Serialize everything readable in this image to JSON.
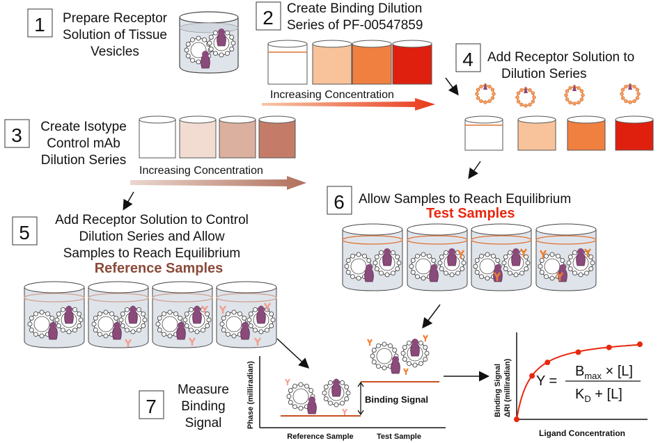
{
  "steps": {
    "s1": {
      "num": "1",
      "lines": [
        "Prepare Receptor",
        "Solution of Tissue",
        "Vesicles"
      ]
    },
    "s2": {
      "num": "2",
      "lines": [
        "Create Binding Dilution",
        "Series of PF-00547859"
      ]
    },
    "s3": {
      "num": "3",
      "lines": [
        "Create Isotype",
        "Control mAb",
        "Dilution Series"
      ]
    },
    "s4": {
      "num": "4",
      "lines": [
        "Add Receptor Solution to",
        "Dilution Series"
      ]
    },
    "s5": {
      "num": "5",
      "lines": [
        "Add Receptor Solution to Control",
        "Dilution Series and Allow",
        "Samples to Reach Equilibrium"
      ]
    },
    "s6": {
      "num": "6",
      "lines": [
        "Allow Samples to Reach Equilibrium"
      ]
    },
    "s7": {
      "num": "7",
      "lines": [
        "Measure",
        "Binding",
        "Signal"
      ]
    }
  },
  "arrows": {
    "test_concentration": "Increasing Concentration",
    "control_concentration": "Increasing Concentration"
  },
  "samples": {
    "test": "Test Samples",
    "reference": "Reference Samples"
  },
  "phase_plot": {
    "ylabel": "Phase (milliradian)",
    "binding_signal": "Binding Signal",
    "x_labels": [
      "Reference Sample",
      "Test Sample"
    ]
  },
  "binding_plot": {
    "ylabel_line1": "Binding Signal",
    "ylabel_line2": "ΔRI (milliradian)",
    "xlabel": "Ligand Concentration"
  },
  "equation": {
    "lhs": "Y =",
    "numerator_b": "B",
    "numerator_sub": "max",
    "numerator_rest": " × [L]",
    "denominator_k": "K",
    "denominator_sub": "D",
    "denominator_rest": " + [L]"
  },
  "colors": {
    "test_series": [
      "#ffffff",
      "#f8c39a",
      "#f08040",
      "#e0200e"
    ],
    "control_series": [
      "#ffffff",
      "#f2dcd2",
      "#dcb09e",
      "#c47c68"
    ],
    "test_arrow": "#e8391a",
    "control_arrow": "#c08a78",
    "curve": "#e8280f"
  },
  "chart_data": {
    "type": "scatter",
    "title": "",
    "xlabel": "Ligand Concentration",
    "ylabel": "Binding Signal ΔRI (milliradian)",
    "x": [
      0,
      1,
      2,
      4,
      6,
      8
    ],
    "y": [
      0,
      0.55,
      0.72,
      0.85,
      0.91,
      0.95
    ],
    "xlim": [
      0,
      8.5
    ],
    "ylim": [
      0,
      1.1
    ]
  }
}
